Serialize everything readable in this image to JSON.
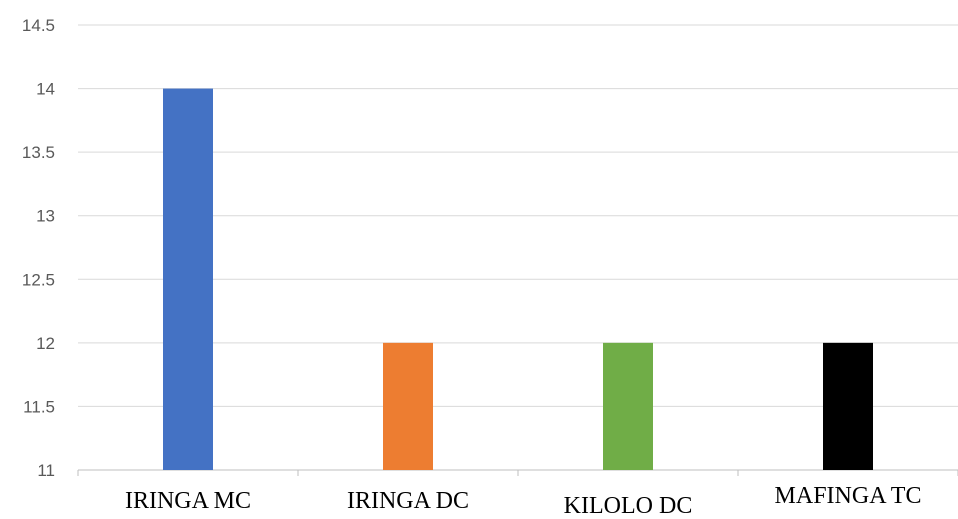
{
  "chart_data": {
    "type": "bar",
    "categories": [
      "IRINGA MC",
      "IRINGA DC",
      "KILOLO DC",
      "MAFINGA TC"
    ],
    "values": [
      14,
      12,
      12,
      12
    ],
    "colors": [
      "#4472C4",
      "#ED7D31",
      "#70AD47",
      "#000000"
    ],
    "yticks": [
      "11",
      "11.5",
      "12",
      "12.5",
      "13",
      "13.5",
      "14",
      "14.5"
    ],
    "ylim": [
      11,
      14.5
    ],
    "grid": true,
    "legend": "none"
  }
}
